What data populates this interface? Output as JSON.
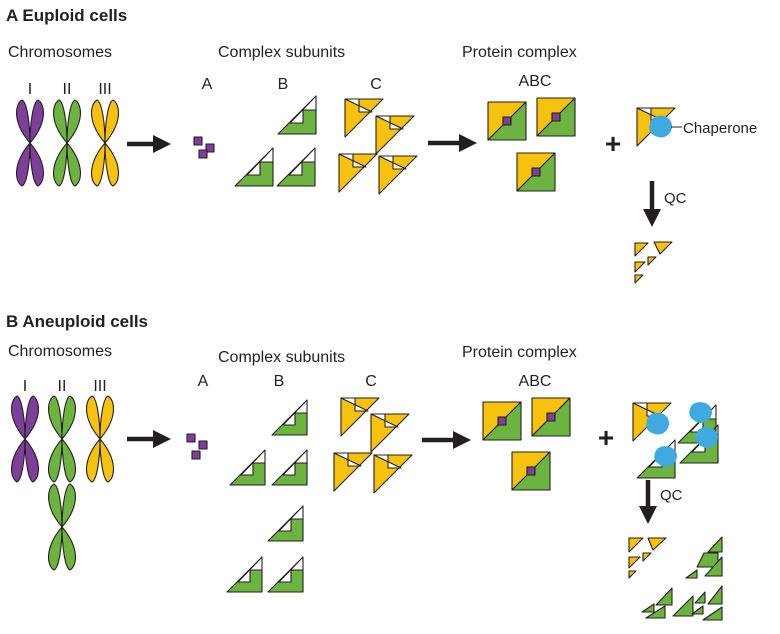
{
  "colors": {
    "chromosome_I": "#7d3f98",
    "chromosome_II": "#6cb33f",
    "chromosome_III": "#f6c20e",
    "subunit_A": "#7d3f98",
    "subunit_B": "#6cb33f",
    "subunit_C": "#f6c20e",
    "chaperone": "#3fa9e0",
    "outline": "#231f20"
  },
  "panel_a": {
    "title": "A  Euploid cells",
    "chromosomes_label": "Chromosomes",
    "chromosome_names": [
      "I",
      "II",
      "III"
    ],
    "subunits_label": "Complex subunits",
    "subunit_names": [
      "A",
      "B",
      "C"
    ],
    "complex_label": "Protein complex",
    "complex_name": "ABC",
    "chaperone_label": "Chaperone",
    "plus_sign": "+",
    "qc_label": "QC"
  },
  "panel_b": {
    "title": "B  Aneuploid cells",
    "chromosomes_label": "Chromosomes",
    "chromosome_names": [
      "I",
      "II",
      "III"
    ],
    "subunits_label": "Complex subunits",
    "subunit_names": [
      "A",
      "B",
      "C"
    ],
    "complex_label": "Protein complex",
    "complex_name": "ABC",
    "plus_sign": "+",
    "qc_label": "QC"
  }
}
